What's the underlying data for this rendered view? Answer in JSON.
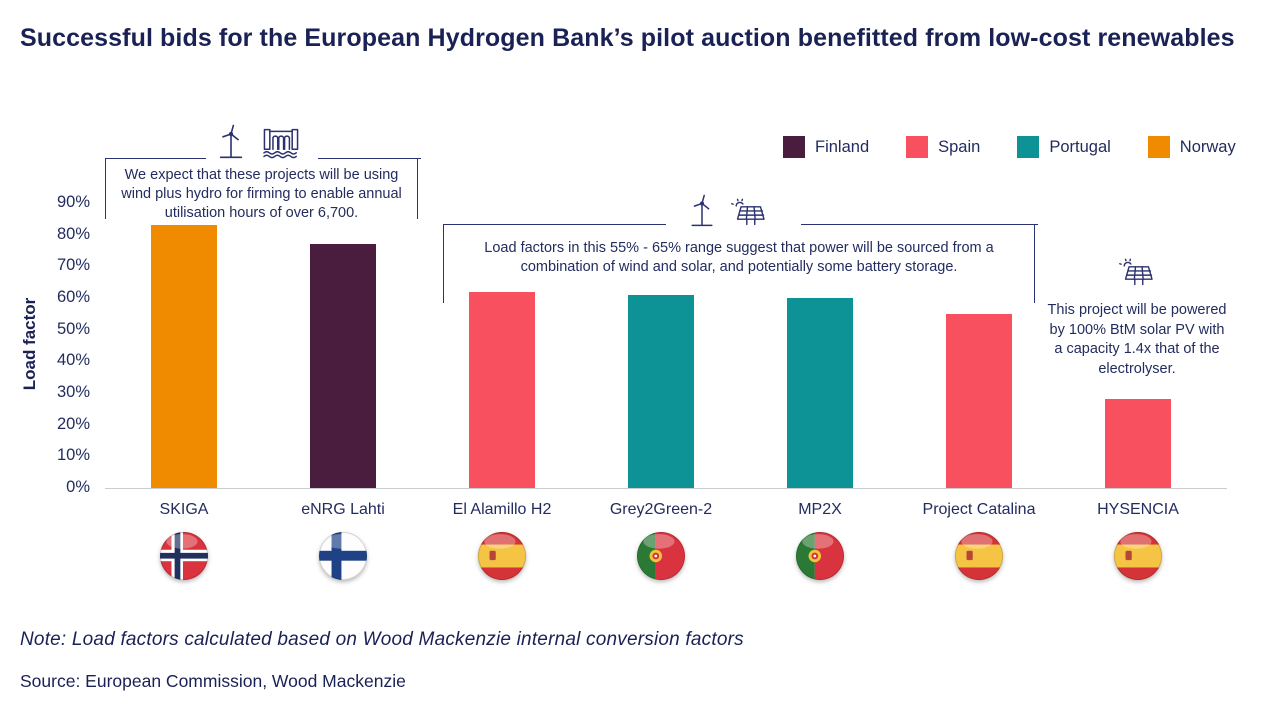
{
  "title": "Successful bids for the European Hydrogen Bank’s pilot auction benefitted from low-cost renewables",
  "legend": {
    "items": [
      {
        "label": "Finland",
        "color": "#4a1c3e"
      },
      {
        "label": "Spain",
        "color": "#f9505f"
      },
      {
        "label": "Portugal",
        "color": "#0d9396"
      },
      {
        "label": "Norway",
        "color": "#f08b00"
      }
    ]
  },
  "chart_data": {
    "type": "bar",
    "title": "Successful bids for the European Hydrogen Bank’s pilot auction benefitted from low-cost renewables",
    "xlabel": "",
    "ylabel": "Load factor",
    "ylim": [
      0,
      90
    ],
    "y_ticks": [
      "0%",
      "10%",
      "20%",
      "30%",
      "40%",
      "50%",
      "60%",
      "70%",
      "80%",
      "90%"
    ],
    "grid": false,
    "legend_position": "top-right",
    "categories": [
      "SKIGA",
      "eNRG Lahti",
      "El Alamillo H2",
      "Grey2Green-2",
      "MP2X",
      "Project Catalina",
      "HYSENCIA"
    ],
    "values": [
      83,
      77,
      62,
      61,
      60,
      55,
      28
    ],
    "unit": "%",
    "countries": [
      "Norway",
      "Finland",
      "Spain",
      "Portugal",
      "Portugal",
      "Spain",
      "Spain"
    ],
    "series_colors": {
      "Finland": "#4a1c3e",
      "Spain": "#f9505f",
      "Portugal": "#0d9396",
      "Norway": "#f08b00"
    }
  },
  "annotations": [
    {
      "icons": [
        "wind-turbine-icon",
        "hydro-dam-icon"
      ],
      "text": "We expect that these projects will be using wind plus hydro for firming to enable annual utilisation hours of over 6,700."
    },
    {
      "icons": [
        "wind-turbine-icon",
        "solar-panel-icon"
      ],
      "text": "Load factors in this 55% - 65% range suggest that power will be sourced from a combination of wind and solar, and potentially some battery storage."
    },
    {
      "icons": [
        "solar-panel-icon"
      ],
      "text": "This project will be powered by 100% BtM solar PV with a capacity 1.4x that of the electrolyser."
    }
  ],
  "note": "Note: Load factors calculated based on Wood Mackenzie internal conversion factors",
  "source": "Source: European Commission, Wood Mackenzie"
}
